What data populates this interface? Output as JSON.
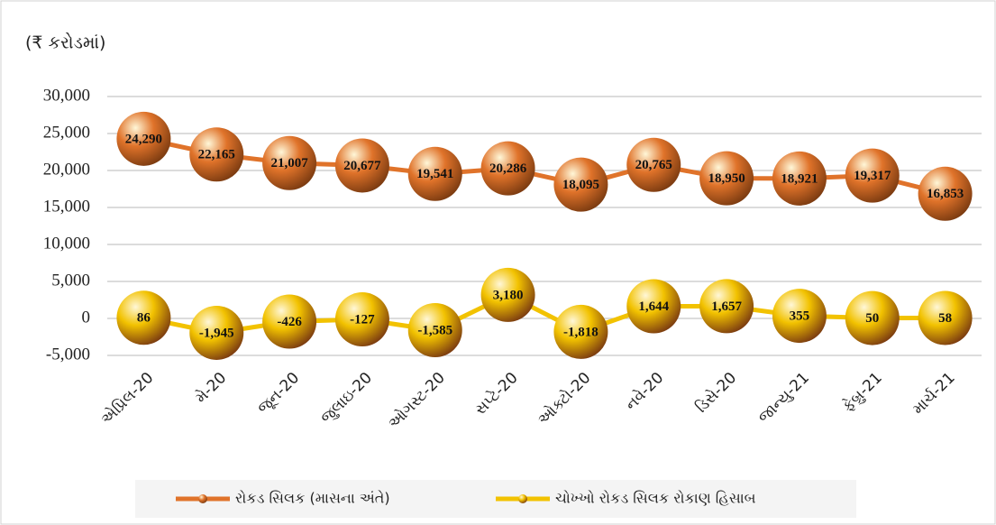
{
  "chart_data": {
    "type": "line",
    "y_label": "(₹ કરોડમાં)",
    "categories": [
      "એપ્રિલ-20",
      "મે-20",
      "જૂન-20",
      "જુલાઇ-20",
      "ઓગસ્ટ-20",
      "સપ્ટે-20",
      "ઓક્ટો-20",
      "નવે-20",
      "ડિસે-20",
      "જાન્યુ-21",
      "ફેબ્રુ-21",
      "માર્ચ-21"
    ],
    "series": [
      {
        "name": "રોકડ સિલક (માસના અંતે)",
        "color": "#e0732a",
        "values": [
          24290,
          22165,
          21007,
          20677,
          19541,
          20286,
          18095,
          20765,
          18950,
          18921,
          19317,
          16853
        ],
        "value_labels": [
          "24,290",
          "22,165",
          "21,007",
          "20,677",
          "19,541",
          "20,286",
          "18,095",
          "20,765",
          "18,950",
          "18,921",
          "19,317",
          "16,853"
        ]
      },
      {
        "name": "ચોખ્ખો રોકડ સિલક રોકાણ હિસાબ",
        "color": "#f2c200",
        "values": [
          86,
          -1945,
          -426,
          -127,
          -1585,
          3180,
          -1818,
          1644,
          1657,
          355,
          50,
          58
        ],
        "value_labels": [
          "86",
          "-1,945",
          "-426",
          "-127",
          "-1,585",
          "3,180",
          "-1,818",
          "1,644",
          "1,657",
          "355",
          "50",
          "58"
        ]
      }
    ],
    "ylim": [
      -5000,
      30000
    ],
    "yticks": [
      {
        "value": -5000,
        "label": "-5,000"
      },
      0,
      {
        "value": 5000,
        "label": "5,000"
      },
      {
        "value": 10000,
        "label": "10,000"
      },
      {
        "value": 15000,
        "label": "15,000"
      },
      {
        "value": 20000,
        "label": "20,000"
      },
      {
        "value": 25000,
        "label": "25,000"
      },
      {
        "value": 30000,
        "label": "30,000"
      }
    ],
    "grid": true
  }
}
